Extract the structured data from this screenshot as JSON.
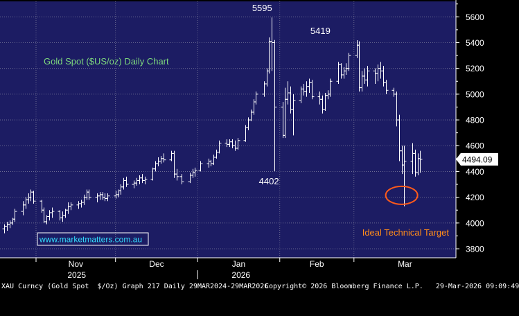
{
  "chart_data": {
    "type": "ohlc",
    "title": "Gold Spot ($US/oz) Daily Chart",
    "xlabel": "",
    "ylabel": "",
    "ylim": [
      3730,
      5720
    ],
    "y_ticks": [
      3800,
      4000,
      4200,
      4400,
      4600,
      4800,
      5000,
      5200,
      5400,
      5600
    ],
    "x_months": [
      {
        "label": "Nov",
        "date": "2025-11-01"
      },
      {
        "label": "Dec",
        "date": "2025-12-01"
      },
      {
        "label": "Jan",
        "date": "2026-01-01"
      },
      {
        "label": "Feb",
        "date": "2026-02-01"
      },
      {
        "label": "Mar",
        "date": "2026-03-01"
      }
    ],
    "x_years": [
      {
        "label": "2025",
        "date": "2025-12-01"
      },
      {
        "label": "2026",
        "date": "2026-02-01"
      }
    ],
    "last_price": "4494.09",
    "annotations": [
      {
        "text": "5595",
        "date": "2026-01-29",
        "value": 5595
      },
      {
        "text": "4402",
        "date": "2026-01-30",
        "value": 4402
      },
      {
        "text": "5419",
        "date": "2026-02-20",
        "value": 5419
      }
    ],
    "target": {
      "text": "Ideal Technical Target",
      "date": "2026-03-19",
      "value": 4215
    },
    "watermark": "www.marketmatters.com.au",
    "series": [
      {
        "values": [
          [
            "2025-10-20",
            3955,
            3990,
            3920,
            3975
          ],
          [
            "2025-10-21",
            3975,
            4010,
            3940,
            3990
          ],
          [
            "2025-10-22",
            3990,
            4020,
            3960,
            4000
          ],
          [
            "2025-10-23",
            4000,
            4040,
            3985,
            4030
          ],
          [
            "2025-10-24",
            4030,
            4110,
            4010,
            4090
          ],
          [
            "2025-10-27",
            4090,
            4170,
            4060,
            4140
          ],
          [
            "2025-10-28",
            4140,
            4200,
            4110,
            4180
          ],
          [
            "2025-10-29",
            4180,
            4230,
            4150,
            4200
          ],
          [
            "2025-10-30",
            4200,
            4260,
            4170,
            4240
          ],
          [
            "2025-10-31",
            4240,
            4250,
            4150,
            4170
          ],
          [
            "2025-11-03",
            4170,
            4180,
            4080,
            4100
          ],
          [
            "2025-11-04",
            4100,
            4120,
            4000,
            4010
          ],
          [
            "2025-11-05",
            4010,
            4060,
            3990,
            4050
          ],
          [
            "2025-11-06",
            4050,
            4100,
            4020,
            4080
          ],
          [
            "2025-11-07",
            4080,
            4120,
            4040,
            4090
          ],
          [
            "2025-11-10",
            4090,
            4100,
            4020,
            4040
          ],
          [
            "2025-11-11",
            4040,
            4090,
            4010,
            4060
          ],
          [
            "2025-11-12",
            4060,
            4110,
            4040,
            4100
          ],
          [
            "2025-11-13",
            4100,
            4160,
            4070,
            4130
          ],
          [
            "2025-11-14",
            4130,
            4160,
            4100,
            4140
          ],
          [
            "2025-11-17",
            4140,
            4170,
            4110,
            4150
          ],
          [
            "2025-11-18",
            4150,
            4180,
            4120,
            4160
          ],
          [
            "2025-11-19",
            4160,
            4220,
            4140,
            4200
          ],
          [
            "2025-11-20",
            4200,
            4260,
            4180,
            4240
          ],
          [
            "2025-11-21",
            4240,
            4260,
            4180,
            4200
          ],
          [
            "2025-11-24",
            4200,
            4230,
            4160,
            4210
          ],
          [
            "2025-11-25",
            4210,
            4240,
            4180,
            4220
          ],
          [
            "2025-11-26",
            4220,
            4240,
            4180,
            4200
          ],
          [
            "2025-11-27",
            4200,
            4230,
            4170,
            4190
          ],
          [
            "2025-11-28",
            4190,
            4230,
            4170,
            4210
          ],
          [
            "2025-12-01",
            4210,
            4250,
            4190,
            4220
          ],
          [
            "2025-12-02",
            4220,
            4260,
            4200,
            4250
          ],
          [
            "2025-12-03",
            4250,
            4300,
            4220,
            4280
          ],
          [
            "2025-12-04",
            4280,
            4350,
            4260,
            4330
          ],
          [
            "2025-12-05",
            4330,
            4360,
            4280,
            4300
          ],
          [
            "2025-12-08",
            4300,
            4330,
            4270,
            4310
          ],
          [
            "2025-12-09",
            4310,
            4350,
            4290,
            4330
          ],
          [
            "2025-12-10",
            4330,
            4370,
            4300,
            4350
          ],
          [
            "2025-12-11",
            4350,
            4380,
            4310,
            4330
          ],
          [
            "2025-12-12",
            4330,
            4360,
            4300,
            4340
          ],
          [
            "2025-12-15",
            4340,
            4430,
            4330,
            4420
          ],
          [
            "2025-12-16",
            4420,
            4480,
            4400,
            4460
          ],
          [
            "2025-12-17",
            4460,
            4510,
            4440,
            4480
          ],
          [
            "2025-12-18",
            4480,
            4520,
            4460,
            4500
          ],
          [
            "2025-12-19",
            4500,
            4540,
            4470,
            4490
          ],
          [
            "2025-12-22",
            4490,
            4560,
            4480,
            4540
          ],
          [
            "2025-12-23",
            4540,
            4560,
            4350,
            4380
          ],
          [
            "2025-12-24",
            4380,
            4420,
            4330,
            4360
          ],
          [
            "2025-12-26",
            4360,
            4380,
            4300,
            4320
          ],
          [
            "2025-12-29",
            4320,
            4390,
            4310,
            4370
          ],
          [
            "2025-12-30",
            4370,
            4420,
            4350,
            4390
          ],
          [
            "2025-12-31",
            4390,
            4430,
            4360,
            4410
          ],
          [
            "2026-01-02",
            4410,
            4480,
            4400,
            4460
          ],
          [
            "2026-01-05",
            4460,
            4500,
            4430,
            4480
          ],
          [
            "2026-01-06",
            4480,
            4490,
            4440,
            4460
          ],
          [
            "2026-01-07",
            4460,
            4530,
            4450,
            4510
          ],
          [
            "2026-01-08",
            4510,
            4570,
            4500,
            4550
          ],
          [
            "2026-01-09",
            4550,
            4640,
            4540,
            4620
          ],
          [
            "2026-01-12",
            4620,
            4650,
            4590,
            4610
          ],
          [
            "2026-01-13",
            4610,
            4650,
            4590,
            4630
          ],
          [
            "2026-01-14",
            4630,
            4650,
            4580,
            4600
          ],
          [
            "2026-01-15",
            4600,
            4640,
            4560,
            4580
          ],
          [
            "2026-01-16",
            4580,
            4660,
            4570,
            4640
          ],
          [
            "2026-01-19",
            4640,
            4760,
            4630,
            4740
          ],
          [
            "2026-01-20",
            4740,
            4820,
            4720,
            4800
          ],
          [
            "2026-01-21",
            4800,
            4880,
            4790,
            4860
          ],
          [
            "2026-01-22",
            4860,
            4960,
            4840,
            4940
          ],
          [
            "2026-01-23",
            4940,
            5020,
            4920,
            5000
          ],
          [
            "2026-01-26",
            5000,
            5100,
            4980,
            5080
          ],
          [
            "2026-01-27",
            5080,
            5200,
            5060,
            5180
          ],
          [
            "2026-01-28",
            5180,
            5440,
            5160,
            5410
          ],
          [
            "2026-01-29",
            5410,
            5595,
            5180,
            5400
          ],
          [
            "2026-01-30",
            5400,
            5420,
            4402,
            4900
          ],
          [
            "2026-02-02",
            4900,
            4940,
            4660,
            4680
          ],
          [
            "2026-02-03",
            4680,
            5050,
            4660,
            4960
          ],
          [
            "2026-02-04",
            4960,
            5100,
            4920,
            5010
          ],
          [
            "2026-02-05",
            5010,
            5060,
            4850,
            4880
          ],
          [
            "2026-02-06",
            4880,
            5000,
            4680,
            4950
          ],
          [
            "2026-02-09",
            4950,
            5060,
            4930,
            5040
          ],
          [
            "2026-02-10",
            5040,
            5080,
            4990,
            5020
          ],
          [
            "2026-02-11",
            5020,
            5100,
            4980,
            5060
          ],
          [
            "2026-02-12",
            5060,
            5120,
            5010,
            5090
          ],
          [
            "2026-02-13",
            5090,
            5110,
            4960,
            4980
          ],
          [
            "2026-02-16",
            4980,
            5020,
            4920,
            4960
          ],
          [
            "2026-02-17",
            4960,
            4990,
            4850,
            4880
          ],
          [
            "2026-02-18",
            4880,
            5010,
            4870,
            4990
          ],
          [
            "2026-02-19",
            4990,
            5030,
            4960,
            5000
          ],
          [
            "2026-02-20",
            5000,
            5120,
            4980,
            5100
          ],
          [
            "2026-02-23",
            5100,
            5250,
            5080,
            5230
          ],
          [
            "2026-02-24",
            5230,
            5240,
            5120,
            5150
          ],
          [
            "2026-02-25",
            5150,
            5210,
            5120,
            5180
          ],
          [
            "2026-02-26",
            5180,
            5240,
            5150,
            5200
          ],
          [
            "2026-02-27",
            5200,
            5320,
            5180,
            5300
          ],
          [
            "2026-03-02",
            5300,
            5419,
            5280,
            5380
          ],
          [
            "2026-03-03",
            5380,
            5410,
            5020,
            5050
          ],
          [
            "2026-03-04",
            5050,
            5180,
            5020,
            5140
          ],
          [
            "2026-03-05",
            5140,
            5200,
            5080,
            5110
          ],
          [
            "2026-03-06",
            5110,
            5220,
            5060,
            5180
          ],
          [
            "2026-03-09",
            5180,
            5200,
            5080,
            5160
          ],
          [
            "2026-03-10",
            5160,
            5230,
            5100,
            5200
          ],
          [
            "2026-03-11",
            5200,
            5250,
            5120,
            5180
          ],
          [
            "2026-03-12",
            5180,
            5220,
            5060,
            5090
          ],
          [
            "2026-03-13",
            5090,
            5110,
            5000,
            5030
          ],
          [
            "2026-03-16",
            5030,
            5050,
            4980,
            5000
          ],
          [
            "2026-03-17",
            5000,
            5020,
            4750,
            4800
          ],
          [
            "2026-03-18",
            4800,
            4840,
            4480,
            4560
          ],
          [
            "2026-03-19",
            4560,
            4600,
            4380,
            4450
          ],
          [
            "2026-03-20",
            4450,
            4600,
            4130,
            4480
          ],
          [
            "2026-03-23",
            4480,
            4620,
            4380,
            4540
          ],
          [
            "2026-03-24",
            4540,
            4570,
            4360,
            4390
          ],
          [
            "2026-03-25",
            4390,
            4540,
            4370,
            4500
          ],
          [
            "2026-03-26",
            4500,
            4560,
            4390,
            4494.09
          ]
        ]
      }
    ]
  },
  "footer": {
    "left": "XAU Curncy (Gold Spot  $/Oz) Graph 217 Daily 29MAR2024-29MAR2026",
    "right": "Copyright© 2026 Bloomberg Finance L.P.   29-Mar-2026 09:09:49"
  },
  "colors": {
    "plot_bg": "#1c1c63",
    "grid": "#7a7a9a",
    "bars": "#ffffff",
    "title": "#7dd87d",
    "target_text": "#ff8c1a",
    "ellipse": "#ff5a1a",
    "axis_text": "#ffffff"
  }
}
